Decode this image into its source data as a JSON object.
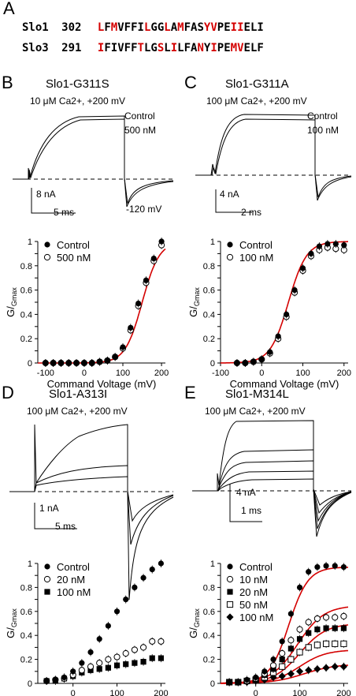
{
  "panel_letters": {
    "a": "A",
    "b": "B",
    "c": "C",
    "d": "D",
    "e": "E"
  },
  "alignment": [
    {
      "name": "Slo1",
      "start": "302",
      "residues": "LFMVFFILGGLAMFASYVPEIIELI",
      "red": [
        0,
        2,
        7,
        10,
        12,
        16,
        17,
        20,
        21
      ]
    },
    {
      "name": "Slo3",
      "start": "291",
      "residues": "IFIVFFTLGSLILFANYIPEMVELF",
      "red": [
        0,
        6,
        9,
        11,
        15,
        17,
        20,
        21
      ]
    }
  ],
  "panels": {
    "b": {
      "title": "Slo1-G311S",
      "condition": "10 μM Ca2+, +200 mV",
      "trace_labels": [
        "Control",
        "500 nM",
        "-120 mV"
      ],
      "scale_y": "8 nA",
      "scale_x": "5 ms"
    },
    "c": {
      "title": "Slo1-G311A",
      "condition": "100 μM Ca2+, +200 mV",
      "trace_labels": [
        "Control",
        "100 nM"
      ],
      "scale_y": "4 nA",
      "scale_x": "2 ms"
    },
    "d": {
      "title": "Slo1-A313I",
      "condition": "100 μM Ca2+, +200 mV",
      "scale_y": "1 nA",
      "scale_x": "5 ms"
    },
    "e": {
      "title": "Slo1-M314L",
      "condition": "100 μM Ca2+, +200 mV",
      "scale_y": "4 nA",
      "scale_x": "1 ms"
    }
  },
  "chart_data": [
    {
      "id": "b",
      "type": "scatter",
      "ylabel": "G/Gmax",
      "xlabel": "Command Voltage (mV)",
      "xlim": [
        -120,
        210
      ],
      "ylim": [
        0,
        1
      ],
      "xticks": [
        -100,
        0,
        100,
        200
      ],
      "yticks": [
        0,
        0.1,
        0.2,
        0.3,
        0.4,
        0.5,
        0.6,
        0.7,
        0.8,
        0.9,
        1
      ],
      "legend": "top-left",
      "series": [
        {
          "name": "Control",
          "marker": "filled-circle",
          "x": [
            -100,
            -80,
            -60,
            -40,
            -20,
            0,
            20,
            40,
            60,
            80,
            100,
            120,
            140,
            160,
            180,
            200
          ],
          "y": [
            0,
            0,
            0,
            0,
            0,
            0,
            0,
            0.01,
            0.02,
            0.05,
            0.13,
            0.29,
            0.49,
            0.68,
            0.86,
            1.0
          ]
        },
        {
          "name": "500 nM",
          "marker": "open-circle",
          "x": [
            -100,
            -80,
            -60,
            -40,
            -20,
            0,
            20,
            40,
            60,
            80,
            100,
            120,
            140,
            160,
            180,
            200
          ],
          "y": [
            0,
            0,
            0,
            0,
            0,
            0,
            0,
            0.01,
            0.02,
            0.05,
            0.12,
            0.27,
            0.47,
            0.66,
            0.84,
            0.97
          ]
        }
      ],
      "fit": {
        "color": "#d40000",
        "vhalf": 150,
        "k": 22
      }
    },
    {
      "id": "c",
      "type": "scatter",
      "ylabel": "G/Gmax",
      "xlabel": "Command Voltage (mV)",
      "xlim": [
        -100,
        210
      ],
      "ylim": [
        0,
        1
      ],
      "xticks": [
        -100,
        0,
        100,
        200
      ],
      "yticks": [
        0,
        0.1,
        0.2,
        0.3,
        0.4,
        0.5,
        0.6,
        0.7,
        0.8,
        0.9,
        1
      ],
      "legend": "top-left",
      "series": [
        {
          "name": "Control",
          "marker": "filled-circle",
          "x": [
            -60,
            -40,
            -20,
            0,
            20,
            40,
            60,
            80,
            100,
            120,
            140,
            160,
            180,
            200
          ],
          "y": [
            0,
            0,
            0.01,
            0.03,
            0.09,
            0.22,
            0.4,
            0.6,
            0.78,
            0.9,
            0.96,
            0.98,
            0.98,
            0.97
          ]
        },
        {
          "name": "100 nM",
          "marker": "open-circle",
          "x": [
            -60,
            -40,
            -20,
            0,
            20,
            40,
            60,
            80,
            100,
            120,
            140,
            160,
            180,
            200
          ],
          "y": [
            0,
            0,
            0.01,
            0.03,
            0.08,
            0.2,
            0.38,
            0.58,
            0.76,
            0.88,
            0.93,
            0.95,
            0.94,
            0.93
          ]
        }
      ],
      "fit": {
        "color": "#d40000",
        "vhalf": 65,
        "k": 22
      }
    },
    {
      "id": "d",
      "type": "scatter",
      "ylabel": "G/Gmax",
      "xlabel": "Command Voltage (mV)",
      "xlim": [
        -80,
        210
      ],
      "ylim": [
        0,
        1
      ],
      "xticks": [
        0,
        100,
        200
      ],
      "yticks": [
        0,
        0.1,
        0.2,
        0.3,
        0.4,
        0.5,
        0.6,
        0.7,
        0.8,
        0.9,
        1
      ],
      "legend": "top-left",
      "series": [
        {
          "name": "Control",
          "marker": "filled-circle",
          "x": [
            -60,
            -40,
            -20,
            0,
            20,
            40,
            60,
            80,
            100,
            120,
            140,
            160,
            180,
            200
          ],
          "y": [
            0.02,
            0.03,
            0.05,
            0.1,
            0.17,
            0.26,
            0.37,
            0.48,
            0.6,
            0.7,
            0.8,
            0.88,
            0.95,
            1.0
          ]
        },
        {
          "name": "20 nM",
          "marker": "open-circle",
          "x": [
            -60,
            -40,
            -20,
            0,
            20,
            40,
            60,
            80,
            100,
            120,
            140,
            160,
            180,
            200
          ],
          "y": [
            0.02,
            0.03,
            0.04,
            0.07,
            0.11,
            0.14,
            0.17,
            0.2,
            0.22,
            0.25,
            0.28,
            0.3,
            0.35,
            0.35
          ]
        },
        {
          "name": "100 nM",
          "marker": "filled-square",
          "x": [
            -60,
            -40,
            -20,
            0,
            20,
            40,
            60,
            80,
            100,
            120,
            140,
            160,
            180,
            200
          ],
          "y": [
            0.02,
            0.02,
            0.04,
            0.06,
            0.09,
            0.11,
            0.12,
            0.13,
            0.15,
            0.16,
            0.17,
            0.18,
            0.21,
            0.21
          ]
        }
      ]
    },
    {
      "id": "e",
      "type": "scatter",
      "ylabel": "G/Gmax",
      "xlabel": "Command Voltage (mV)",
      "xlim": [
        -80,
        210
      ],
      "ylim": [
        0,
        1
      ],
      "xticks": [
        0,
        100,
        200
      ],
      "yticks": [
        0,
        0.1,
        0.2,
        0.3,
        0.4,
        0.5,
        0.6,
        0.7,
        0.8,
        0.9,
        1
      ],
      "legend": "top-left",
      "series": [
        {
          "name": "Control",
          "marker": "filled-circle",
          "x": [
            -60,
            -40,
            -20,
            0,
            20,
            40,
            60,
            80,
            100,
            120,
            140,
            160,
            180,
            200
          ],
          "y": [
            0.01,
            0.01,
            0.03,
            0.05,
            0.1,
            0.2,
            0.35,
            0.58,
            0.8,
            0.93,
            0.97,
            0.98,
            0.98,
            0.97
          ]
        },
        {
          "name": "10 nM",
          "marker": "open-circle",
          "x": [
            -60,
            -40,
            -20,
            0,
            20,
            40,
            60,
            80,
            100,
            120,
            140,
            160,
            180,
            200
          ],
          "y": [
            0.01,
            0.01,
            0.02,
            0.04,
            0.08,
            0.15,
            0.25,
            0.36,
            0.45,
            0.51,
            0.54,
            0.55,
            0.55,
            0.56
          ]
        },
        {
          "name": "20 nM",
          "marker": "filled-square",
          "x": [
            -60,
            -40,
            -20,
            0,
            20,
            40,
            60,
            80,
            100,
            120,
            140,
            160,
            180,
            200
          ],
          "y": [
            0.01,
            0.01,
            0.02,
            0.03,
            0.07,
            0.12,
            0.2,
            0.29,
            0.37,
            0.42,
            0.45,
            0.46,
            0.46,
            0.46
          ]
        },
        {
          "name": "50 nM",
          "marker": "open-square",
          "x": [
            -60,
            -40,
            -20,
            0,
            20,
            40,
            60,
            80,
            100,
            120,
            140,
            160,
            180,
            200
          ],
          "y": [
            0.01,
            0.01,
            0.02,
            0.03,
            0.05,
            0.09,
            0.14,
            0.2,
            0.26,
            0.3,
            0.32,
            0.33,
            0.33,
            0.33
          ]
        },
        {
          "name": "100 nM",
          "marker": "filled-diamond",
          "x": [
            -60,
            -40,
            -20,
            0,
            20,
            40,
            60,
            80,
            100,
            120,
            140,
            160,
            180,
            200
          ],
          "y": [
            0.01,
            0.01,
            0.01,
            0.02,
            0.03,
            0.05,
            0.06,
            0.08,
            0.1,
            0.11,
            0.12,
            0.13,
            0.14,
            0.14
          ]
        }
      ],
      "fits": [
        {
          "color": "#d40000",
          "vhalf": 75,
          "k": 22,
          "amp": 0.97
        },
        {
          "color": "#d40000",
          "vhalf": 95,
          "k": 30,
          "amp": 0.65
        },
        {
          "color": "#d40000",
          "vhalf": 100,
          "k": 30,
          "amp": 0.5
        },
        {
          "color": "#d40000",
          "vhalf": 100,
          "k": 30,
          "amp": 0.28
        },
        {
          "color": "#d40000",
          "vhalf": 110,
          "k": 35,
          "amp": 0.16
        }
      ]
    }
  ]
}
